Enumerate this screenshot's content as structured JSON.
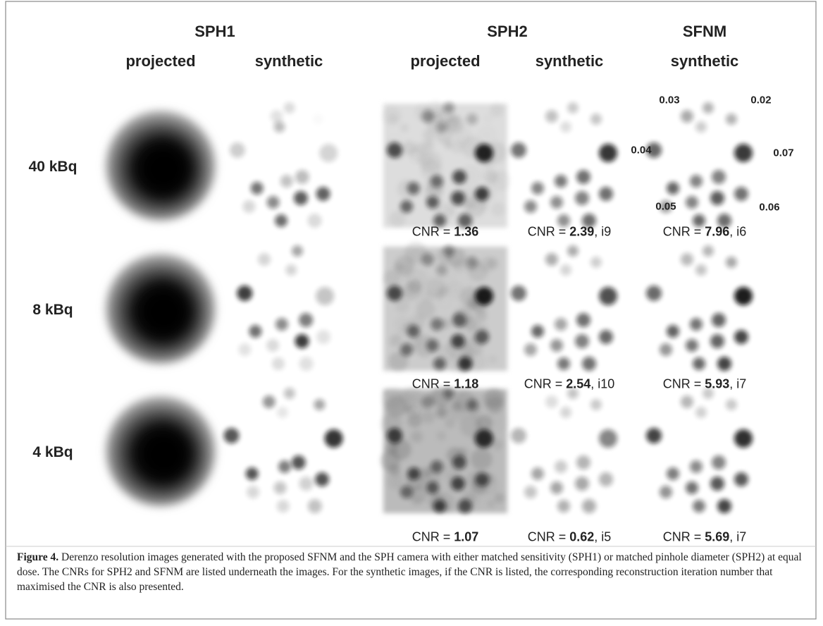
{
  "figure": {
    "groups": [
      "SPH1",
      "SPH2",
      "SFNM"
    ],
    "headers": [
      "projected",
      "synthetic",
      "projected",
      "synthetic",
      "synthetic"
    ],
    "rows": [
      {
        "label": "40 kBq",
        "cnr": [
          {
            "label": "CNR =",
            "value": "1.36"
          },
          {
            "label": "CNR =",
            "value": "2.39",
            "suffix": ", i9"
          },
          {
            "label": "CNR =",
            "value": "7.96",
            "suffix": ", i6"
          }
        ]
      },
      {
        "label": "8 kBq",
        "cnr": [
          {
            "label": "CNR =",
            "value": "1.18"
          },
          {
            "label": "CNR =",
            "value": "2.54",
            "suffix": ", i10"
          },
          {
            "label": "CNR =",
            "value": "5.93",
            "suffix": ", i7"
          }
        ]
      },
      {
        "label": "4 kBq",
        "cnr": [
          {
            "label": "CNR =",
            "value": "1.07"
          },
          {
            "label": "CNR =",
            "value": "0.62",
            "suffix": ", i5"
          },
          {
            "label": "CNR =",
            "value": "5.69",
            "suffix": ", i7"
          }
        ]
      }
    ],
    "annotations": [
      "0.03",
      "0.02",
      "0.04",
      "0.07",
      "0.05",
      "0.06"
    ],
    "caption": {
      "label": "Figure 4.",
      "text": "Derenzo resolution images generated with the proposed SFNM and the SPH camera with either matched sensitivity (SPH1) or matched pinhole diameter (SPH2) at equal dose. The CNRs for SPH2 and SFNM are listed underneath the images. For the synthetic images, if the CNR is listed, the corresponding reconstruction iteration number that maximised the CNR is also presented."
    }
  }
}
